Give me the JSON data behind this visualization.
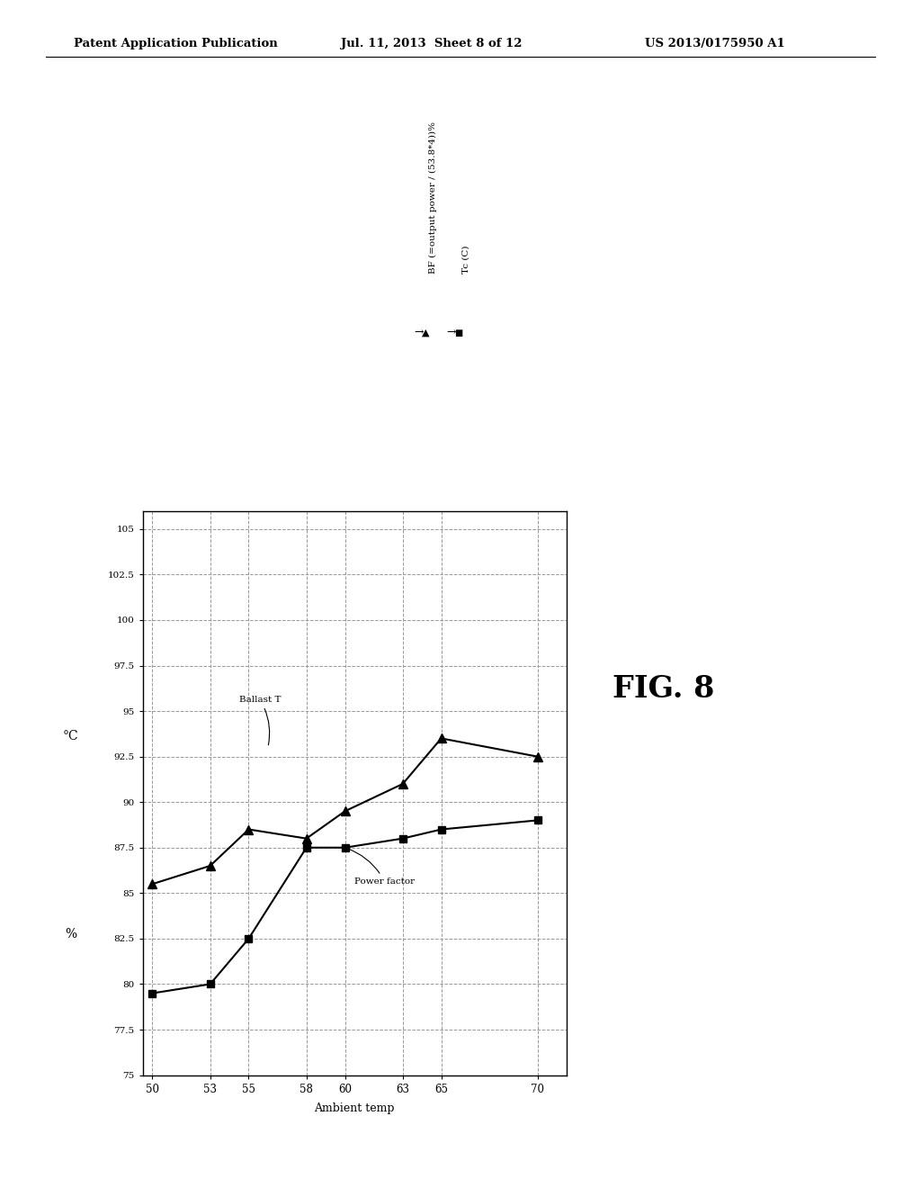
{
  "header_left": "Patent Application Publication",
  "header_mid": "Jul. 11, 2013  Sheet 8 of 12",
  "header_right": "US 2013/0175950 A1",
  "fig_label": "FIG. 8",
  "xlabel": "Ambient temp",
  "ylabel_left": "°C",
  "ylabel_right": "%",
  "x_ticks": [
    50,
    53,
    55,
    58,
    60,
    63,
    65,
    70
  ],
  "y_ticks": [
    75,
    77.5,
    80,
    82.5,
    85,
    87.5,
    90,
    92.5,
    95,
    97.5,
    100,
    102.5,
    105
  ],
  "y_min": 75,
  "y_max": 105,
  "legend_bf": "BF (=output power / (53.8*4))%",
  "legend_tc": "Tc (C)",
  "annotation_ballast": "Ballast T",
  "annotation_power": "Power factor",
  "bf_x": [
    50,
    53,
    55,
    58,
    60,
    63,
    65,
    70
  ],
  "bf_y": [
    85.5,
    86.5,
    88.5,
    88.0,
    89.5,
    91.0,
    93.5,
    92.5
  ],
  "tc_x": [
    50,
    53,
    55,
    58,
    60,
    63,
    65,
    70
  ],
  "tc_y": [
    79.5,
    80.0,
    82.5,
    87.5,
    87.5,
    88.0,
    88.5,
    89.0
  ],
  "background_color": "#ffffff",
  "line_color": "#000000",
  "grid_color": "#999999",
  "ballast_dashed_y": 92.5,
  "power_dashed_y": 85.0
}
